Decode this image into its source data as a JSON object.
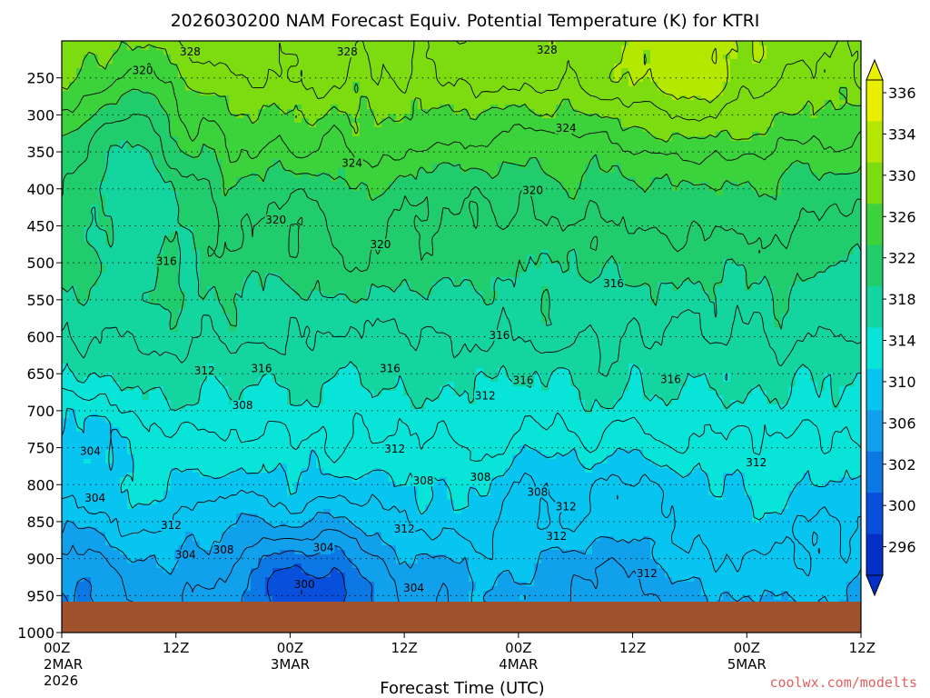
{
  "chart_data": {
    "type": "heatmap",
    "title": "2026030200 NAM Forecast Equiv. Potential Temperature (K) for KTRI",
    "xlabel": "Forecast Time (UTC)",
    "ylabel": "",
    "y_ticks": [
      250,
      300,
      350,
      400,
      450,
      500,
      550,
      600,
      650,
      700,
      750,
      800,
      850,
      900,
      950,
      1000
    ],
    "ylim": [
      1000,
      200
    ],
    "x_ticks": [
      {
        "hour": 0,
        "label": "00Z",
        "sub1": "2MAR",
        "sub2": "2026"
      },
      {
        "hour": 12,
        "label": "12Z",
        "sub1": "",
        "sub2": ""
      },
      {
        "hour": 24,
        "label": "00Z",
        "sub1": "3MAR",
        "sub2": ""
      },
      {
        "hour": 36,
        "label": "12Z",
        "sub1": "",
        "sub2": ""
      },
      {
        "hour": 48,
        "label": "00Z",
        "sub1": "4MAR",
        "sub2": ""
      },
      {
        "hour": 60,
        "label": "12Z",
        "sub1": "",
        "sub2": ""
      },
      {
        "hour": 72,
        "label": "00Z",
        "sub1": "5MAR",
        "sub2": ""
      },
      {
        "hour": 84,
        "label": "12Z",
        "sub1": "",
        "sub2": ""
      }
    ],
    "xlim": [
      0,
      84
    ],
    "colorbar": {
      "labels": [
        336,
        334,
        330,
        326,
        322,
        318,
        314,
        310,
        306,
        302,
        300,
        296
      ],
      "bands": [
        {
          "lo": 334,
          "hi": 338,
          "color": "#e8f000"
        },
        {
          "lo": 330,
          "hi": 334,
          "color": "#b4e800"
        },
        {
          "lo": 326,
          "hi": 330,
          "color": "#7cdc10"
        },
        {
          "lo": 322,
          "hi": 326,
          "color": "#3cd23c"
        },
        {
          "lo": 318,
          "hi": 322,
          "color": "#20cc6c"
        },
        {
          "lo": 314,
          "hi": 318,
          "color": "#14d4a0"
        },
        {
          "lo": 310,
          "hi": 314,
          "color": "#08e4d8"
        },
        {
          "lo": 306,
          "hi": 310,
          "color": "#08c4f0"
        },
        {
          "lo": 302,
          "hi": 306,
          "color": "#10a0ec"
        },
        {
          "lo": 300,
          "hi": 302,
          "color": "#0c78e4"
        },
        {
          "lo": 296,
          "hi": 300,
          "color": "#0850dc"
        },
        {
          "lo": 292,
          "hi": 296,
          "color": "#0430c8"
        }
      ]
    },
    "contour_interval": 2,
    "contour_labels": [
      {
        "hour": 13.5,
        "p": 215,
        "v": "328"
      },
      {
        "hour": 30.0,
        "p": 215,
        "v": "328"
      },
      {
        "hour": 51.0,
        "p": 212,
        "v": "328"
      },
      {
        "hour": 8.5,
        "p": 240,
        "v": "320"
      },
      {
        "hour": 53.0,
        "p": 318,
        "v": "324"
      },
      {
        "hour": 30.5,
        "p": 365,
        "v": "324"
      },
      {
        "hour": 49.5,
        "p": 402,
        "v": "320"
      },
      {
        "hour": 22.5,
        "p": 442,
        "v": "320"
      },
      {
        "hour": 33.5,
        "p": 475,
        "v": "320"
      },
      {
        "hour": 11.0,
        "p": 498,
        "v": "316"
      },
      {
        "hour": 58.0,
        "p": 528,
        "v": "316"
      },
      {
        "hour": 46.0,
        "p": 598,
        "v": "316"
      },
      {
        "hour": 21.0,
        "p": 643,
        "v": "316"
      },
      {
        "hour": 34.5,
        "p": 643,
        "v": "316"
      },
      {
        "hour": 48.5,
        "p": 659,
        "v": "316"
      },
      {
        "hour": 64.0,
        "p": 658,
        "v": "316"
      },
      {
        "hour": 15.0,
        "p": 646,
        "v": "312"
      },
      {
        "hour": 44.5,
        "p": 680,
        "v": "312"
      },
      {
        "hour": 35.0,
        "p": 752,
        "v": "312"
      },
      {
        "hour": 73.0,
        "p": 770,
        "v": "312"
      },
      {
        "hour": 19.0,
        "p": 693,
        "v": "308"
      },
      {
        "hour": 3.0,
        "p": 755,
        "v": "304"
      },
      {
        "hour": 38.0,
        "p": 795,
        "v": "308"
      },
      {
        "hour": 44.0,
        "p": 790,
        "v": "308"
      },
      {
        "hour": 50.0,
        "p": 810,
        "v": "308"
      },
      {
        "hour": 3.5,
        "p": 818,
        "v": "304"
      },
      {
        "hour": 11.5,
        "p": 855,
        "v": "312"
      },
      {
        "hour": 53.0,
        "p": 830,
        "v": "312"
      },
      {
        "hour": 36.0,
        "p": 860,
        "v": "312"
      },
      {
        "hour": 52.0,
        "p": 870,
        "v": "312"
      },
      {
        "hour": 13.0,
        "p": 895,
        "v": "304"
      },
      {
        "hour": 17.0,
        "p": 888,
        "v": "308"
      },
      {
        "hour": 27.5,
        "p": 885,
        "v": "304"
      },
      {
        "hour": 61.5,
        "p": 920,
        "v": "312"
      },
      {
        "hour": 25.5,
        "p": 935,
        "v": "300"
      },
      {
        "hour": 37.0,
        "p": 940,
        "v": "304"
      }
    ]
  },
  "credit": "coolwx.com/modelts"
}
